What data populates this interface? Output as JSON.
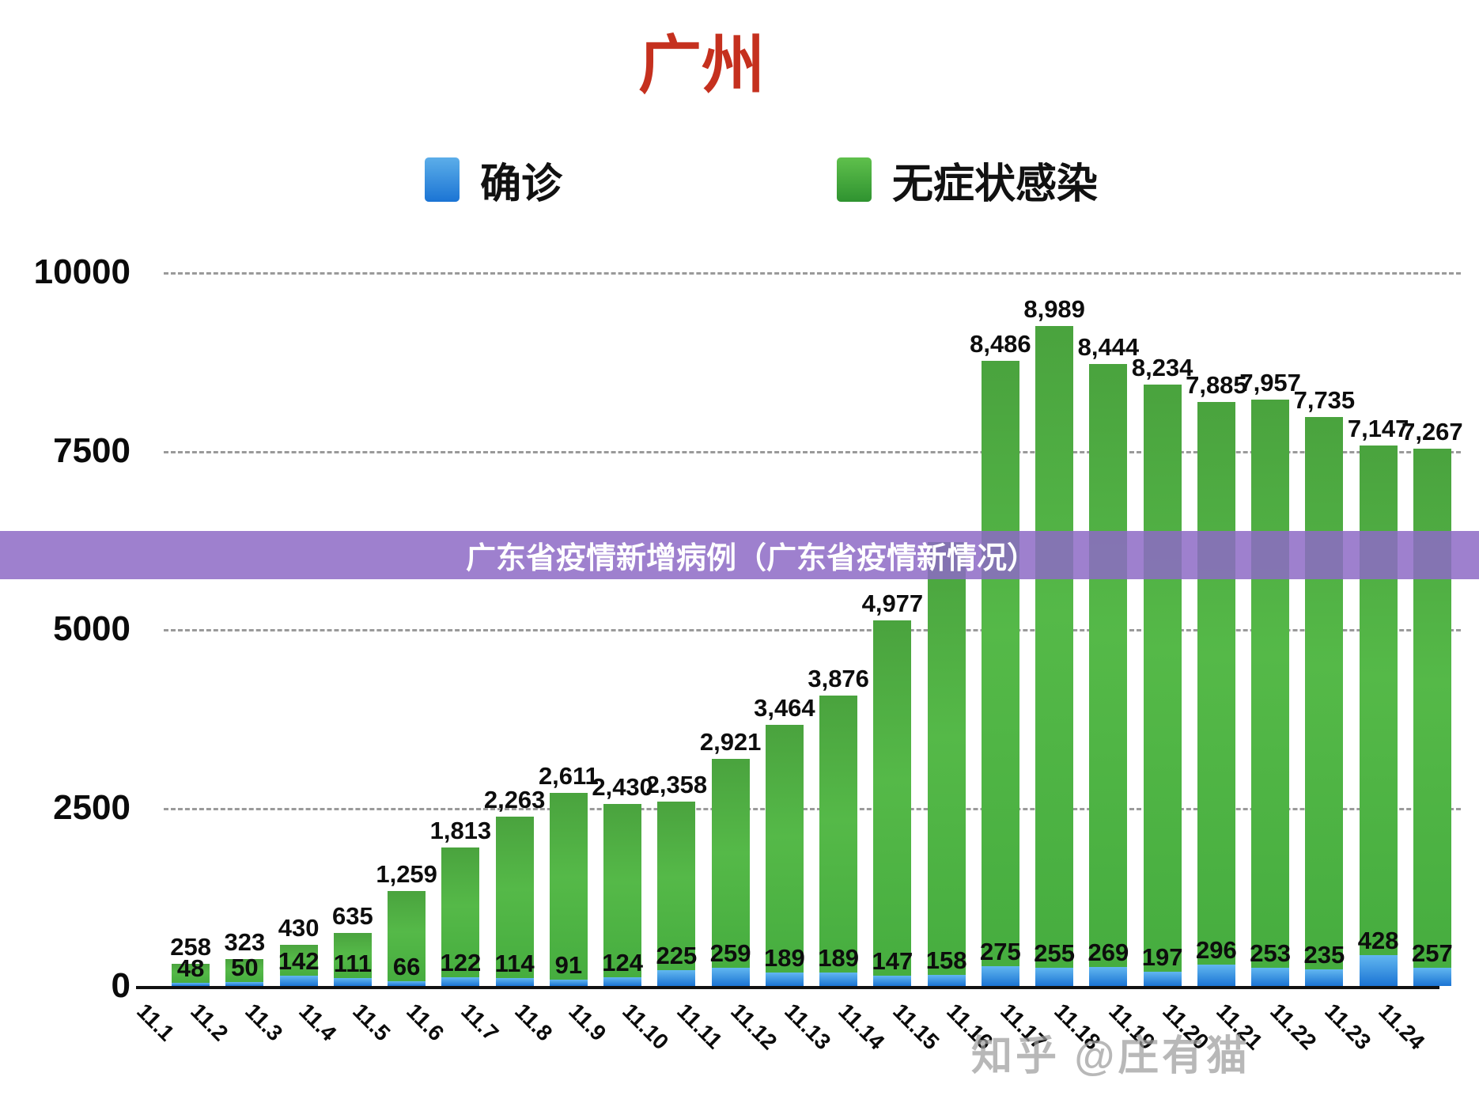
{
  "title": "广州",
  "banner": {
    "text": "广东省疫情新增病例（广东省疫情新情况）",
    "color": "rgba(141,106,198,0.85)"
  },
  "watermark": "知乎 @庄有猫",
  "legend": {
    "confirmed_label": "确诊",
    "asymptomatic_label": "无症状感染",
    "confirmed_color": "#1b74d4",
    "asymptomatic_color": "#3f9e3c"
  },
  "chart_data": {
    "type": "bar",
    "stacked": true,
    "title": "广州",
    "categories": [
      "11.1",
      "11.2",
      "11.3",
      "11.4",
      "11.5",
      "11.6",
      "11.7",
      "11.8",
      "11.9",
      "11.10",
      "11.11",
      "11.12",
      "11.13",
      "11.14",
      "11.15",
      "11.16",
      "11.17",
      "11.18",
      "11.19",
      "11.20",
      "11.21",
      "11.22",
      "11.23",
      "11.24"
    ],
    "series": [
      {
        "name": "确诊",
        "color": "#1b74d4",
        "values": [
          48,
          50,
          142,
          111,
          66,
          122,
          114,
          91,
          124,
          225,
          259,
          189,
          189,
          147,
          158,
          275,
          255,
          269,
          197,
          296,
          253,
          235,
          428,
          257
        ]
      },
      {
        "name": "无症状感染",
        "color": "#3f9e3c",
        "values": [
          258,
          323,
          430,
          635,
          1259,
          1813,
          2263,
          2611,
          2430,
          2358,
          2921,
          3464,
          3876,
          4977,
          6060,
          8486,
          8989,
          8444,
          8234,
          7885,
          7957,
          7735,
          7147,
          7267
        ]
      }
    ],
    "hidden_asymptomatic_label_indices": [
      14
    ],
    "ylim": [
      0,
      10000
    ],
    "yticks": [
      0,
      2500,
      5000,
      7500,
      10000
    ],
    "grid": "horizontal-dashed",
    "legend_position": "top"
  }
}
